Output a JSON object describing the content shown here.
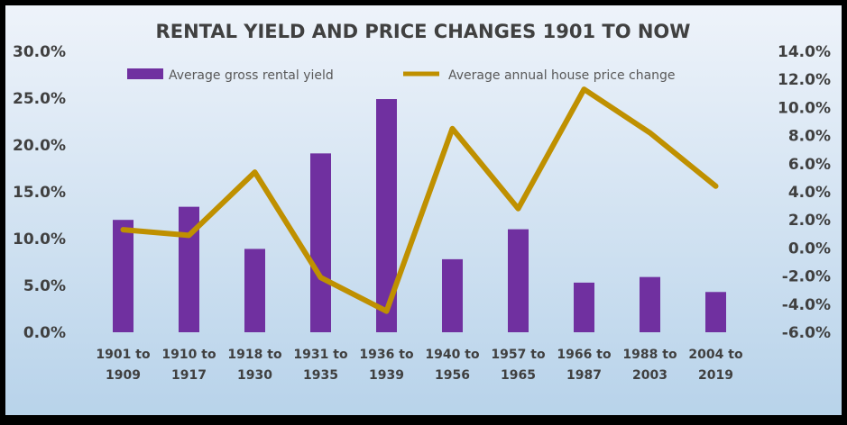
{
  "chart_data": {
    "type": "bar",
    "title": "RENTAL YIELD AND PRICE CHANGES 1901 TO NOW",
    "categories": [
      [
        "1901 to",
        "1909"
      ],
      [
        "1910 to",
        "1917"
      ],
      [
        "1918 to",
        "1930"
      ],
      [
        "1931 to",
        "1935"
      ],
      [
        "1936 to",
        "1939"
      ],
      [
        "1940 to",
        "1956"
      ],
      [
        "1957 to",
        "1965"
      ],
      [
        "1966 to",
        "1987"
      ],
      [
        "1988 to",
        "2003"
      ],
      [
        "2004 to",
        "2019"
      ]
    ],
    "series": [
      {
        "name": "Average gross rental yield",
        "type": "bar",
        "axis": "left",
        "color": "#7030A0",
        "values": [
          12.0,
          13.4,
          8.9,
          19.1,
          24.9,
          7.8,
          11.0,
          5.3,
          5.9,
          4.3
        ]
      },
      {
        "name": "Average annual house price change",
        "type": "line",
        "axis": "right",
        "color": "#BF9000",
        "values": [
          1.3,
          0.9,
          5.4,
          -2.1,
          -4.5,
          8.5,
          2.8,
          11.3,
          8.2,
          4.4
        ]
      }
    ],
    "left_axis": {
      "ylim": [
        0,
        30
      ],
      "ticks": [
        "0.0%",
        "5.0%",
        "10.0%",
        "15.0%",
        "20.0%",
        "25.0%",
        "30.0%"
      ]
    },
    "right_axis": {
      "ylim": [
        -6,
        14
      ],
      "ticks": [
        "-6.0%",
        "-4.0%",
        "-2.0%",
        "0.0%",
        "2.0%",
        "4.0%",
        "6.0%",
        "8.0%",
        "10.0%",
        "12.0%",
        "14.0%"
      ]
    },
    "legend_position": "top",
    "grid": false,
    "colors": {
      "background_top": "#EEF3FA",
      "background_bottom": "#B8D3EA",
      "frame": "#000000",
      "text": "#404040"
    }
  }
}
